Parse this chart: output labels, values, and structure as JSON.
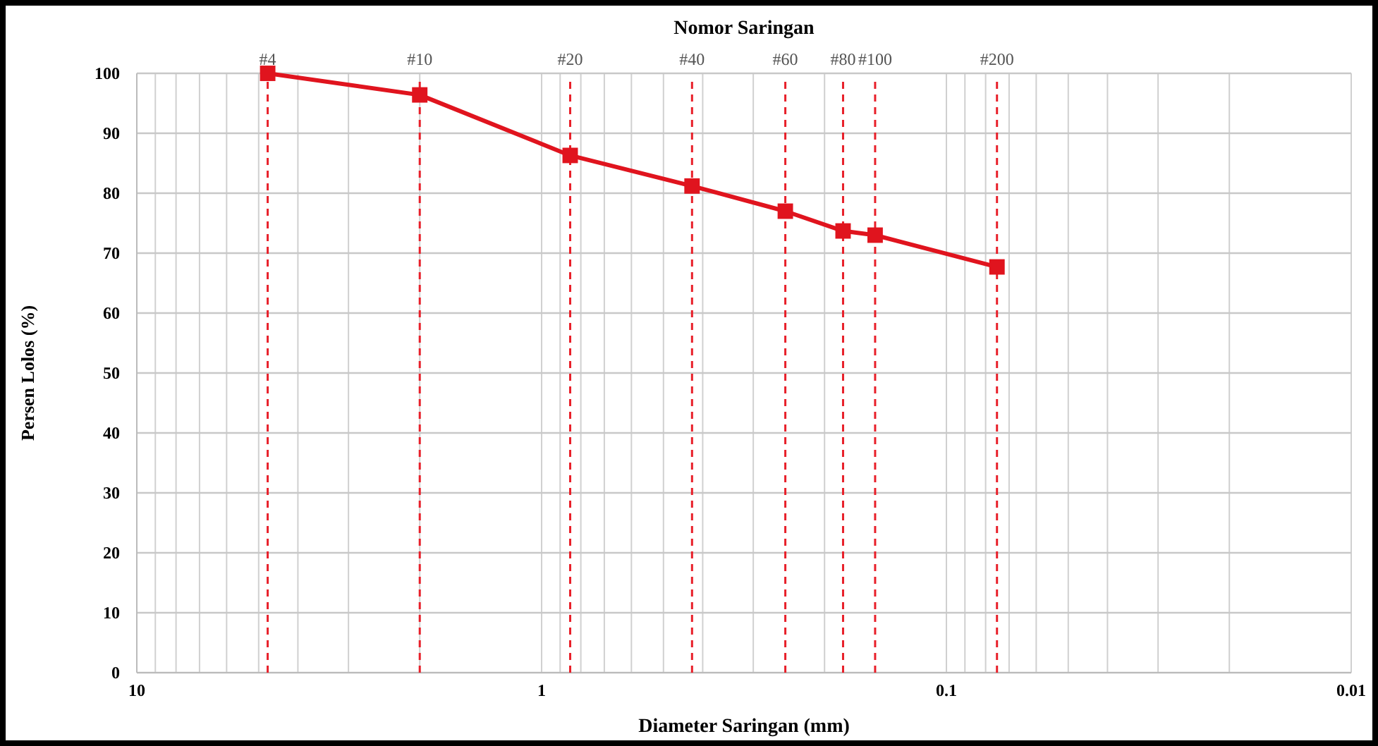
{
  "chart_data": {
    "type": "line",
    "x2label": "Nomor Saringan",
    "xlabel": "Diameter Saringan (mm)",
    "ylabel": "Persen Lolos (%)",
    "x": [
      4.75,
      2.0,
      0.85,
      0.425,
      0.25,
      0.18,
      0.15,
      0.075
    ],
    "series": [
      {
        "color": "#e0141e",
        "values": [
          100,
          96.4,
          86.3,
          81.2,
          77,
          73.7,
          73,
          67.7
        ]
      }
    ],
    "log": "x",
    "xlim": [
      10,
      0.01
    ],
    "xticks": [
      10,
      {
        "value": 9,
        "label": null
      },
      {
        "value": 8,
        "label": null
      },
      {
        "value": 7,
        "label": null
      },
      {
        "value": 6,
        "label": null
      },
      {
        "value": 5,
        "label": null
      },
      {
        "value": 4,
        "label": null
      },
      {
        "value": 3,
        "label": null
      },
      {
        "value": 2,
        "label": null
      },
      1,
      {
        "value": 0.9,
        "label": null
      },
      {
        "value": 0.8,
        "label": null
      },
      {
        "value": 0.7,
        "label": null
      },
      {
        "value": 0.6,
        "label": null
      },
      {
        "value": 0.5,
        "label": null
      },
      {
        "value": 0.4,
        "label": null
      },
      {
        "value": 0.3,
        "label": null
      },
      {
        "value": 0.2,
        "label": null
      },
      0.1,
      {
        "value": 0.09,
        "label": null
      },
      {
        "value": 0.08,
        "label": null
      },
      {
        "value": 0.07,
        "label": null
      },
      {
        "value": 0.06,
        "label": null
      },
      {
        "value": 0.05,
        "label": null
      },
      {
        "value": 0.04,
        "label": null
      },
      {
        "value": 0.03,
        "label": null
      },
      {
        "value": 0.02,
        "label": null
      },
      0.01
    ],
    "ylim": [
      0,
      100
    ],
    "yticks": [
      0,
      10,
      20,
      30,
      40,
      50,
      60,
      70,
      80,
      90,
      100
    ],
    "annotations": [
      {
        "text": "#4",
        "x": 4.75,
        "y": 100
      },
      {
        "text": "#10",
        "x": 2.0,
        "y": 100
      },
      {
        "text": "#20",
        "x": 0.85,
        "y": 100
      },
      {
        "text": "#40",
        "x": 0.425,
        "y": 100
      },
      {
        "text": "#60",
        "x": 0.25,
        "y": 100
      },
      {
        "text": "#80",
        "x": 0.18,
        "y": 100
      },
      {
        "text": "#100",
        "x": 0.15,
        "y": 100
      },
      {
        "text": "#200",
        "x": 0.075,
        "y": 100
      }
    ],
    "grid": true,
    "marker": "square",
    "line_style": "solid",
    "ref_lines": [
      {
        "axis": "x",
        "value": 4.75,
        "color": "#e8202a",
        "line_style": "dashed"
      },
      {
        "axis": "x",
        "value": 2.0,
        "color": "#e8202a",
        "line_style": "dashed"
      },
      {
        "axis": "x",
        "value": 0.85,
        "color": "#e8202a",
        "line_style": "dashed"
      },
      {
        "axis": "x",
        "value": 0.425,
        "color": "#e8202a",
        "line_style": "dashed"
      },
      {
        "axis": "x",
        "value": 0.25,
        "color": "#e8202a",
        "line_style": "dashed"
      },
      {
        "axis": "x",
        "value": 0.18,
        "color": "#e8202a",
        "line_style": "dashed"
      },
      {
        "axis": "x",
        "value": 0.15,
        "color": "#e8202a",
        "line_style": "dashed"
      },
      {
        "axis": "x",
        "value": 0.075,
        "color": "#e8202a",
        "line_style": "dashed"
      }
    ]
  }
}
